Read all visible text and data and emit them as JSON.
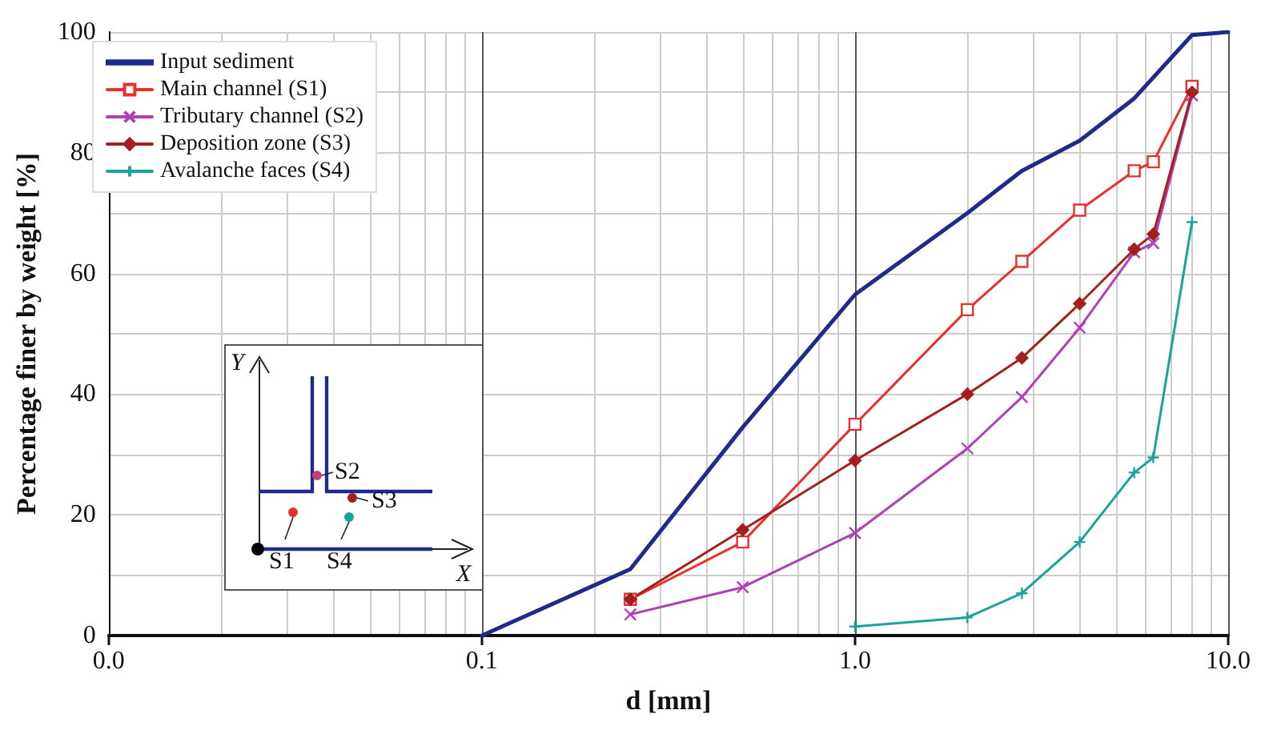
{
  "chart_data": {
    "type": "line",
    "xlabel": "d [mm]",
    "ylabel": "Percentage finer by weight [%]",
    "log": "x",
    "grid": true,
    "legend": "top left",
    "line_style": "solid",
    "xlim": [
      0.01,
      10
    ],
    "xticks": [
      {
        "value": 0.01,
        "label": "0.0"
      },
      {
        "value": 0.1,
        "label": "0.1"
      },
      {
        "value": 1,
        "label": "1.0"
      },
      {
        "value": 10,
        "label": "10.0"
      }
    ],
    "ylim": [
      0,
      100
    ],
    "yticks": [
      0,
      20,
      40,
      60,
      80,
      100
    ],
    "annotations": [
      "S1",
      "S2",
      "S3",
      "S4",
      "X",
      "Y"
    ],
    "series": [
      {
        "name": "Input sediment",
        "color": "#1f2a8c",
        "marker": "none",
        "x": [
          0.1,
          0.25,
          0.5,
          1,
          2,
          2.8,
          4,
          5.6,
          8,
          10
        ],
        "values": [
          0,
          11,
          34.5,
          56.5,
          70,
          77,
          82,
          89,
          99.5,
          100
        ]
      },
      {
        "name": "Main channel (S1)",
        "color": "#e8312c",
        "marker": "square",
        "x": [
          0.25,
          0.5,
          1,
          2,
          2.8,
          4,
          5.6,
          6.3,
          8
        ],
        "values": [
          6,
          15.5,
          35,
          54,
          62,
          70.5,
          77,
          78.5,
          91
        ]
      },
      {
        "name": "Tributary channel (S2)",
        "color": "#b23fb5",
        "marker": "cross",
        "x": [
          0.25,
          0.5,
          1,
          2,
          2.8,
          4,
          5.6,
          6.3,
          8
        ],
        "values": [
          3.5,
          8,
          17,
          31,
          39.5,
          51,
          63.5,
          65,
          89.5
        ]
      },
      {
        "name": "Deposition zone (S3)",
        "color": "#a3201f",
        "marker": "diamond",
        "x": [
          0.25,
          0.5,
          1,
          2,
          2.8,
          4,
          5.6,
          6.3,
          8
        ],
        "values": [
          6,
          17.5,
          29,
          40,
          46,
          55,
          64,
          66.5,
          90
        ]
      },
      {
        "name": "Avalanche faces (S4)",
        "color": "#1aa39a",
        "marker": "plus",
        "x": [
          1,
          2,
          2.8,
          4,
          5.6,
          6.3,
          8
        ],
        "values": [
          1.5,
          3,
          7,
          15.5,
          27,
          29.5,
          68.5
        ]
      }
    ]
  }
}
